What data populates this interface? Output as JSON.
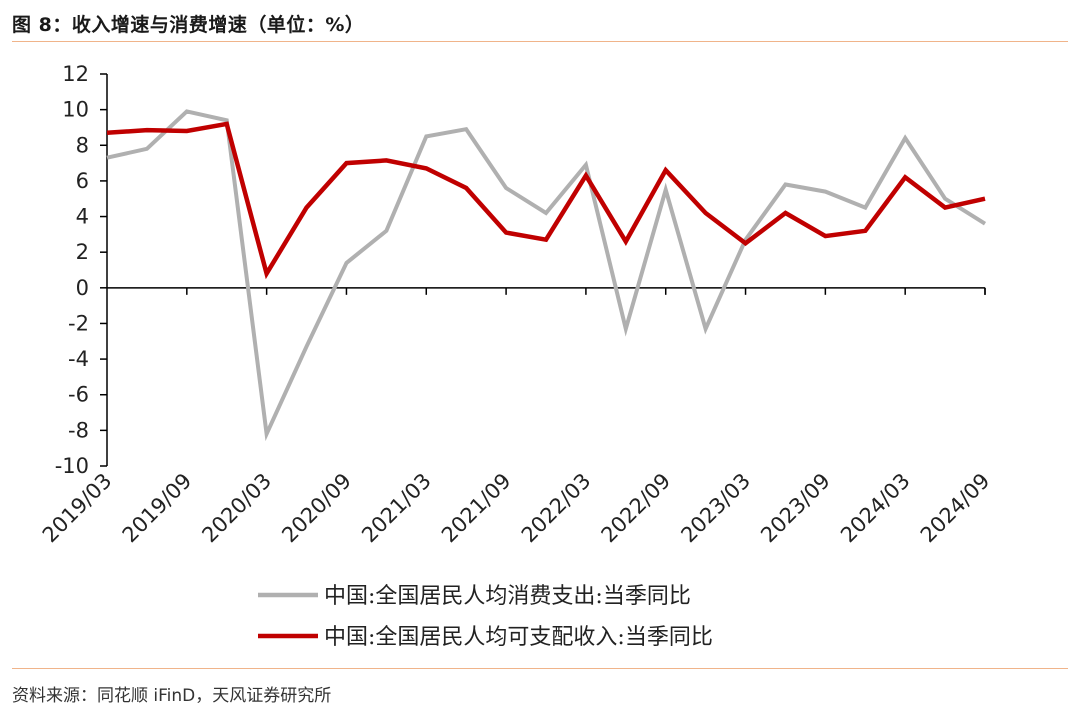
{
  "header": {
    "title": "图 8：收入增速与消费增速（单位：%）"
  },
  "footer": {
    "source": "资料来源：同花顺 iFinD，天风证券研究所"
  },
  "chart_data": {
    "type": "line",
    "x": [
      "2019/03",
      "2019/06",
      "2019/09",
      "2019/12",
      "2020/03",
      "2020/06",
      "2020/09",
      "2020/12",
      "2021/03",
      "2021/06",
      "2021/09",
      "2021/12",
      "2022/03",
      "2022/06",
      "2022/09",
      "2022/12",
      "2023/03",
      "2023/06",
      "2023/09",
      "2023/12",
      "2024/03",
      "2024/06",
      "2024/09"
    ],
    "x_tick_labels": [
      "2019/03",
      "2019/09",
      "2020/03",
      "2020/09",
      "2021/03",
      "2021/09",
      "2022/03",
      "2022/09",
      "2023/03",
      "2023/09",
      "2024/03",
      "2024/09"
    ],
    "ylim": [
      -10,
      12
    ],
    "y_ticks": [
      12,
      10,
      8,
      6,
      4,
      2,
      0,
      -2,
      -4,
      -6,
      -8,
      -10
    ],
    "series": [
      {
        "name": "中国:全国居民人均消费支出:当季同比",
        "color": "#b0b0b0",
        "values": [
          7.3,
          7.8,
          9.9,
          9.4,
          -8.2,
          -3.3,
          1.4,
          3.2,
          8.5,
          8.9,
          5.6,
          4.2,
          6.9,
          -2.3,
          5.5,
          -2.3,
          2.7,
          5.8,
          5.4,
          4.5,
          8.4,
          5.0,
          3.6
        ]
      },
      {
        "name": "中国:全国居民人均可支配收入:当季同比",
        "color": "#c00000",
        "values": [
          8.7,
          8.85,
          8.8,
          9.2,
          0.8,
          4.5,
          7.0,
          7.15,
          6.7,
          5.6,
          3.1,
          2.7,
          6.3,
          2.6,
          6.6,
          4.2,
          2.5,
          4.2,
          2.9,
          3.2,
          6.2,
          4.5,
          5.0
        ]
      }
    ],
    "legend_position": "bottom",
    "grid": false
  }
}
